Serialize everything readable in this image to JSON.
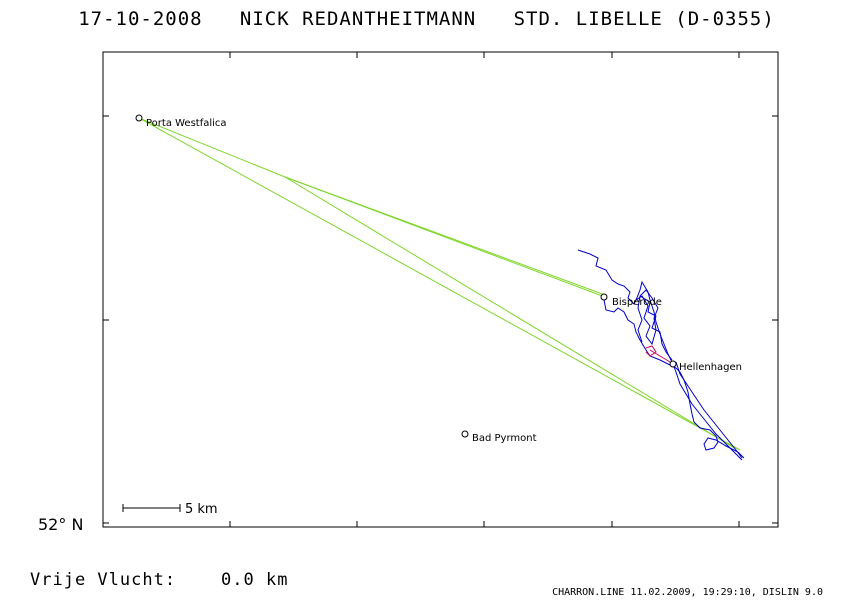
{
  "header": {
    "date": "17-10-2008",
    "pilot": "NICK REDANTHEITMANN",
    "glider": "STD. LIBELLE (D-0355)"
  },
  "axis": {
    "lat_label": "52° N"
  },
  "places": [
    {
      "name": "Porta Westfalica"
    },
    {
      "name": "Bisperode"
    },
    {
      "name": "Hellenhagen"
    },
    {
      "name": "Bad Pyrmont"
    }
  ],
  "scale": {
    "label": "5 km"
  },
  "footer": {
    "distance_label": "Vrije Vlucht:",
    "distance_value": "0.0 km",
    "credits": "CHARRON.LINE 11.02.2009, 19:29:10, DISLIN 9.0"
  },
  "colors": {
    "task": "#7fd62a",
    "track": "#0000cc",
    "local": "#cc0066"
  }
}
